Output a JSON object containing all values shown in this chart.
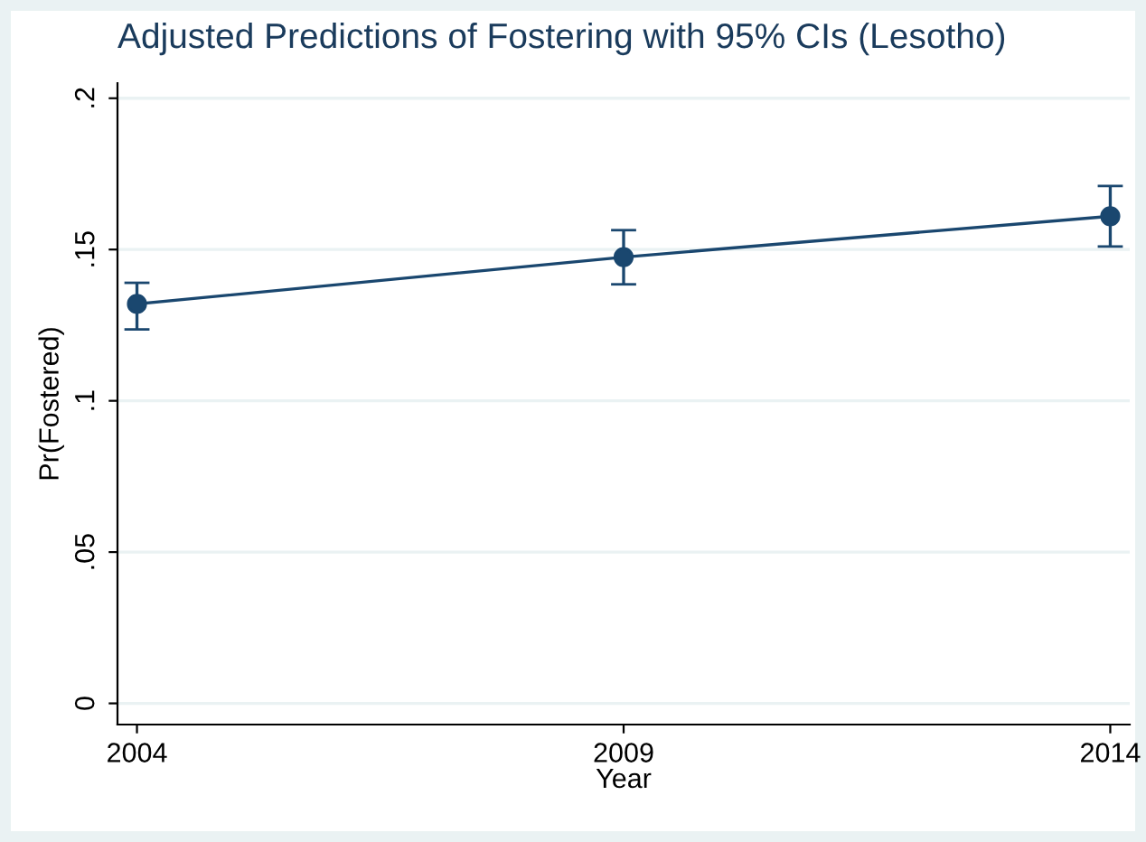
{
  "chart_data": {
    "type": "line",
    "title": "Adjusted Predictions of Fostering with 95% CIs (Lesotho)",
    "xlabel": "Year",
    "ylabel": "Pr(Fostered)",
    "x": [
      2004,
      2009,
      2014
    ],
    "series": [
      {
        "color": "#1a476f",
        "values": [
          0.132,
          0.1475,
          0.161
        ],
        "errors": [
          [
            0.1236,
            0.139
          ],
          [
            0.1385,
            0.1564
          ],
          [
            0.151,
            0.171
          ]
        ]
      }
    ],
    "xlim": [
      2003.8,
      2014.2
    ],
    "xticks": [
      2004,
      2009,
      2014
    ],
    "ylim": [
      -0.007,
      0.205
    ],
    "yticks": [
      {
        "value": 0,
        "label": "0"
      },
      {
        "value": 0.05,
        "label": ".05"
      },
      {
        "value": 0.1,
        "label": ".1"
      },
      {
        "value": 0.15,
        "label": ".15"
      },
      {
        "value": 0.2,
        "label": ".2"
      }
    ],
    "grid": "y",
    "marker": "circle",
    "line_style": "solid"
  }
}
